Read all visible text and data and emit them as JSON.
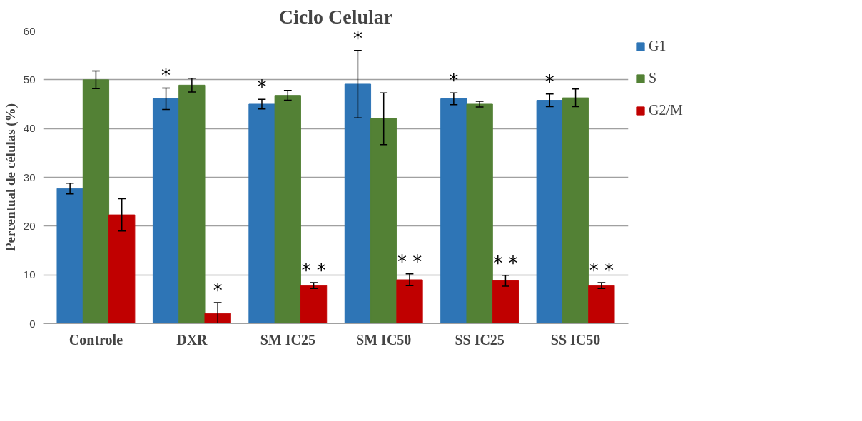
{
  "chart_data": {
    "type": "bar",
    "title": "Ciclo Celular",
    "ylabel": "Percentual de células (%)",
    "categories": [
      "Controle",
      "DXR",
      "SM IC25",
      "SM IC50",
      "SS IC25",
      "SS IC50"
    ],
    "series": [
      {
        "name": "G1",
        "color": "#2e75b6",
        "values": [
          27.7,
          46.1,
          45.0,
          49.1,
          46.1,
          45.8
        ],
        "errors": [
          1.1,
          2.2,
          1.0,
          6.9,
          1.2,
          1.3
        ]
      },
      {
        "name": "S",
        "color": "#538135",
        "values": [
          50.0,
          48.9,
          46.8,
          42.0,
          45.0,
          46.3
        ],
        "errors": [
          1.8,
          1.4,
          1.0,
          5.3,
          0.6,
          1.8
        ]
      },
      {
        "name": "G2/M",
        "color": "#c00000",
        "values": [
          22.3,
          2.1,
          7.8,
          9.0,
          8.8,
          7.8
        ],
        "errors": [
          3.3,
          2.2,
          0.6,
          1.2,
          1.1,
          0.6
        ]
      }
    ],
    "ylim": [
      0,
      60
    ],
    "yticks": [
      0,
      10,
      20,
      30,
      40,
      50,
      60
    ],
    "grid": "y",
    "legend": "right",
    "annotations": [
      "*",
      "*",
      "*",
      "* *",
      "*",
      "* *",
      "*",
      "* *",
      "*",
      "* *"
    ]
  }
}
